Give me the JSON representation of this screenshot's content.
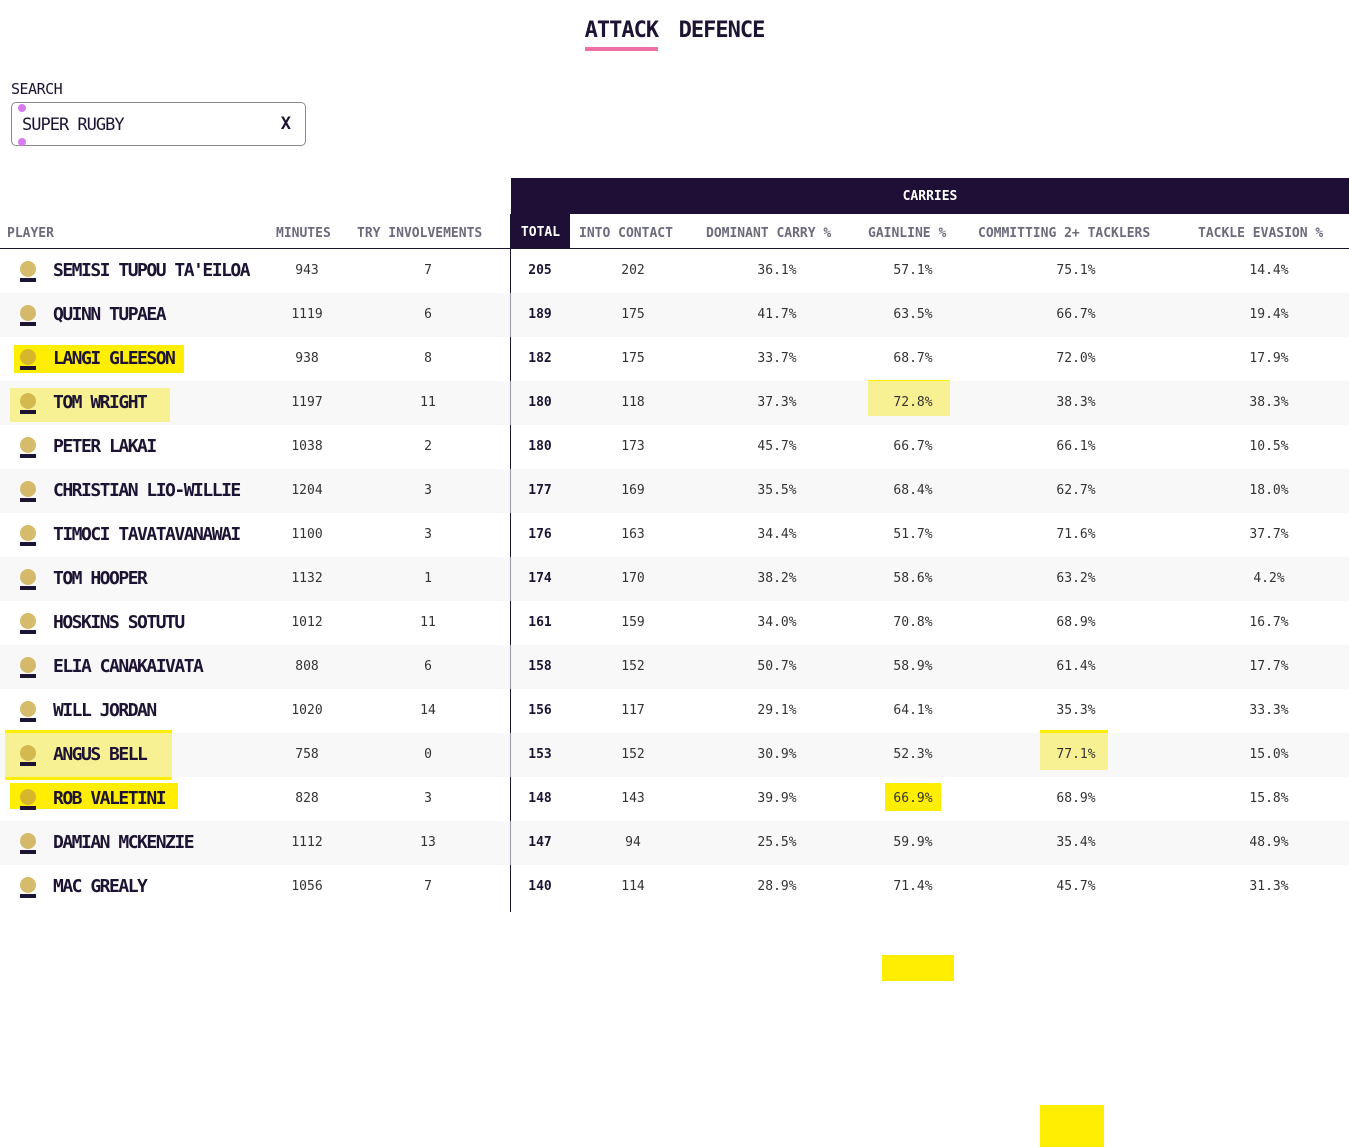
{
  "tabs": [
    {
      "label": "ATTACK",
      "active": true
    },
    {
      "label": "DEFENCE",
      "active": false
    }
  ],
  "search": {
    "label": "SEARCH",
    "value": "SUPER RUGBY",
    "clear": "X"
  },
  "group_header": "CARRIES",
  "columns": {
    "player": "PLAYER",
    "minutes": "MINUTES",
    "try_involvements": "TRY INVOLVEMENTS",
    "total": "TOTAL",
    "into_contact": "INTO CONTACT",
    "dominant_carry": "DOMINANT CARRY %",
    "gainline": "GAINLINE %",
    "committing": "COMMITTING 2+ TACKLERS",
    "tackle_evasion": "TACKLE EVASION %"
  },
  "rows": [
    {
      "name": "SEMISI TUPOU TA'EILOA",
      "team_icon": "moana-pasifika-logo-icon",
      "minutes": "943",
      "try": "7",
      "total": "205",
      "contact": "202",
      "dominant": "36.1%",
      "gainline": "57.1%",
      "committing": "75.1%",
      "evasion": "14.4%"
    },
    {
      "name": "QUINN TUPAEA",
      "team_icon": "chiefs-logo-icon",
      "minutes": "1119",
      "try": "6",
      "total": "189",
      "contact": "175",
      "dominant": "41.7%",
      "gainline": "63.5%",
      "committing": "66.7%",
      "evasion": "19.4%"
    },
    {
      "name": "LANGI GLEESON",
      "team_icon": "waratahs-logo-icon",
      "minutes": "938",
      "try": "8",
      "total": "182",
      "contact": "175",
      "dominant": "33.7%",
      "gainline": "68.7%",
      "committing": "72.0%",
      "evasion": "17.9%"
    },
    {
      "name": "TOM WRIGHT",
      "team_icon": "brumbies-logo-icon",
      "minutes": "1197",
      "try": "11",
      "total": "180",
      "contact": "118",
      "dominant": "37.3%",
      "gainline": "72.8%",
      "committing": "38.3%",
      "evasion": "38.3%"
    },
    {
      "name": "PETER LAKAI",
      "team_icon": "hurricanes-logo-icon",
      "minutes": "1038",
      "try": "2",
      "total": "180",
      "contact": "173",
      "dominant": "45.7%",
      "gainline": "66.7%",
      "committing": "66.1%",
      "evasion": "10.5%"
    },
    {
      "name": "CHRISTIAN LIO-WILLIE",
      "team_icon": "crusaders-logo-icon",
      "minutes": "1204",
      "try": "3",
      "total": "177",
      "contact": "169",
      "dominant": "35.5%",
      "gainline": "68.4%",
      "committing": "62.7%",
      "evasion": "18.0%"
    },
    {
      "name": "TIMOCI TAVATAVANAWAI",
      "team_icon": "highlanders-logo-icon",
      "minutes": "1100",
      "try": "3",
      "total": "176",
      "contact": "163",
      "dominant": "34.4%",
      "gainline": "51.7%",
      "committing": "71.6%",
      "evasion": "37.7%"
    },
    {
      "name": "TOM HOOPER",
      "team_icon": "brumbies-logo-icon",
      "minutes": "1132",
      "try": "1",
      "total": "174",
      "contact": "170",
      "dominant": "38.2%",
      "gainline": "58.6%",
      "committing": "63.2%",
      "evasion": "4.2%"
    },
    {
      "name": "HOSKINS SOTUTU",
      "team_icon": "blues-logo-icon",
      "minutes": "1012",
      "try": "11",
      "total": "161",
      "contact": "159",
      "dominant": "34.0%",
      "gainline": "70.8%",
      "committing": "68.9%",
      "evasion": "16.7%"
    },
    {
      "name": "ELIA CANAKAIVATA",
      "team_icon": "drua-logo-icon",
      "minutes": "808",
      "try": "6",
      "total": "158",
      "contact": "152",
      "dominant": "50.7%",
      "gainline": "58.9%",
      "committing": "61.4%",
      "evasion": "17.7%"
    },
    {
      "name": "WILL JORDAN",
      "team_icon": "crusaders-logo-icon",
      "minutes": "1020",
      "try": "14",
      "total": "156",
      "contact": "117",
      "dominant": "29.1%",
      "gainline": "64.1%",
      "committing": "35.3%",
      "evasion": "33.3%"
    },
    {
      "name": "ANGUS BELL",
      "team_icon": "waratahs-logo-icon",
      "minutes": "758",
      "try": "0",
      "total": "153",
      "contact": "152",
      "dominant": "30.9%",
      "gainline": "52.3%",
      "committing": "77.1%",
      "evasion": "15.0%"
    },
    {
      "name": "ROB VALETINI",
      "team_icon": "brumbies-logo-icon",
      "minutes": "828",
      "try": "3",
      "total": "148",
      "contact": "143",
      "dominant": "39.9%",
      "gainline": "66.9%",
      "committing": "68.9%",
      "evasion": "15.8%"
    },
    {
      "name": "DAMIAN MCKENZIE",
      "team_icon": "chiefs-logo-icon",
      "minutes": "1112",
      "try": "13",
      "total": "147",
      "contact": "94",
      "dominant": "25.5%",
      "gainline": "59.9%",
      "committing": "35.4%",
      "evasion": "48.9%"
    },
    {
      "name": "MAC GREALY",
      "team_icon": "force-logo-icon",
      "minutes": "1056",
      "try": "7",
      "total": "140",
      "contact": "114",
      "dominant": "28.9%",
      "gainline": "71.4%",
      "committing": "45.7%",
      "evasion": "31.3%"
    }
  ],
  "colors": {
    "highlight": "#ffee00",
    "accent": "#ef6fa4",
    "header_dark": "#1d0f35"
  }
}
